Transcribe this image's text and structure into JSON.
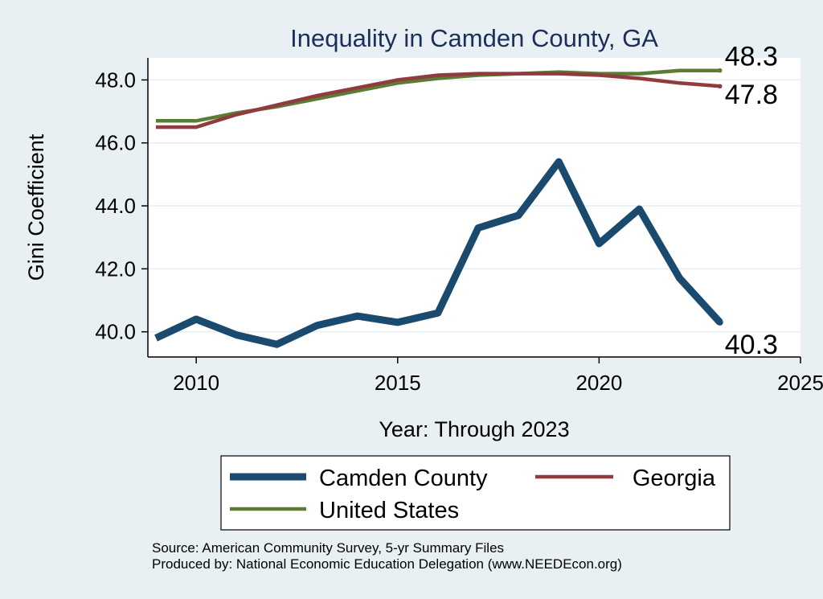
{
  "chart_data": {
    "type": "line",
    "title": "Inequality in Camden County, GA",
    "xlabel": "Year: Through 2023",
    "ylabel": "Gini Coefficient",
    "xlim": [
      2008.8,
      2025
    ],
    "ylim": [
      39.2,
      48.7
    ],
    "xticks": [
      2010,
      2015,
      2020,
      2025
    ],
    "yticks": [
      40.0,
      42.0,
      44.0,
      46.0,
      48.0
    ],
    "ytick_labels": [
      "40.0",
      "42.0",
      "44.0",
      "46.0",
      "48.0"
    ],
    "grid": "horizontal",
    "legend_position": "bottom",
    "x": [
      2009,
      2010,
      2011,
      2012,
      2013,
      2014,
      2015,
      2016,
      2017,
      2018,
      2019,
      2020,
      2021,
      2022,
      2023
    ],
    "series": [
      {
        "name": "Camden County",
        "color": "#1a4a6e",
        "values": [
          39.8,
          40.4,
          39.9,
          39.6,
          40.2,
          40.5,
          40.3,
          40.6,
          43.3,
          43.7,
          45.4,
          42.8,
          43.9,
          41.7,
          40.3
        ],
        "end_label": "40.3"
      },
      {
        "name": "Georgia",
        "color": "#903b3d",
        "values": [
          46.5,
          46.5,
          46.9,
          47.2,
          47.5,
          47.75,
          48.0,
          48.15,
          48.2,
          48.2,
          48.2,
          48.15,
          48.05,
          47.9,
          47.8
        ],
        "end_label": "47.8"
      },
      {
        "name": "United States",
        "color": "#5a7d33",
        "values": [
          46.7,
          46.7,
          46.95,
          47.15,
          47.4,
          47.65,
          47.9,
          48.05,
          48.15,
          48.2,
          48.25,
          48.2,
          48.2,
          48.3,
          48.3
        ],
        "end_label": "48.3"
      }
    ],
    "source_note": "Source: American Community Survey, 5-yr Summary Files",
    "producer_note": "Produced by: National Economic Education Delegation (www.NEEDEcon.org)"
  }
}
